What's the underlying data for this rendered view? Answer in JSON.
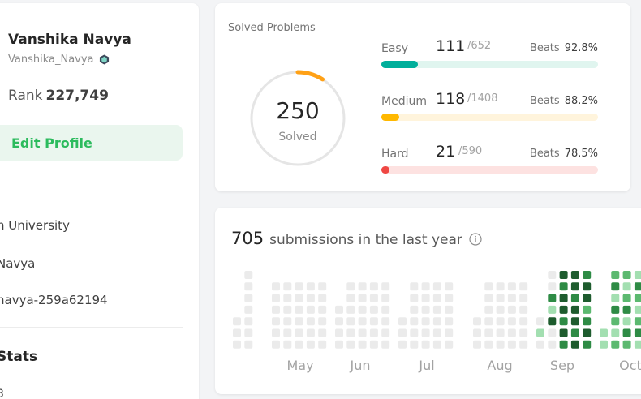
{
  "profile": {
    "name": "Vanshika Navya",
    "username": "Vanshika_Navya",
    "badge_icon": "badge-icon",
    "rank_label": "Rank",
    "rank_value": "227,749",
    "edit_button": "Edit Profile",
    "info": [
      {
        "icon": "school-icon",
        "text": "h University"
      },
      {
        "icon": "github-icon",
        "text": "Navya"
      },
      {
        "icon": "linkedin-icon",
        "text": "navya-259a62194"
      }
    ],
    "stats_title": "Stats",
    "stats_sub": "3"
  },
  "solved": {
    "title": "Solved Problems",
    "total_solved": "250",
    "solved_label": "Solved",
    "ring_fraction": 0.09,
    "ring_color": "#ffa116",
    "difficulties": [
      {
        "name": "Easy",
        "solved": "111",
        "total": "/652",
        "beats_label": "Beats",
        "beats": "92.8%",
        "fraction": 0.17,
        "color": "#00af9b",
        "track": "#e0f5ef"
      },
      {
        "name": "Medium",
        "solved": "118",
        "total": "/1408",
        "beats_label": "Beats",
        "beats": "88.2%",
        "fraction": 0.084,
        "color": "#ffb800",
        "track": "#fff4dc"
      },
      {
        "name": "Hard",
        "solved": "21",
        "total": "/590",
        "beats_label": "Beats",
        "beats": "78.5%",
        "fraction": 0.036,
        "color": "#ef4743",
        "track": "#fde2e1"
      }
    ]
  },
  "submissions": {
    "count": "705",
    "text": "submissions in the last year",
    "info_icon": "info-icon",
    "months": [
      "May",
      "Jun",
      "Jul",
      "Aug",
      "Sep",
      "Oct"
    ],
    "levels": [
      "#ebebeb",
      "#a3dfb1",
      "#5cb970",
      "#2e8b45",
      "#1e5c2e"
    ]
  }
}
